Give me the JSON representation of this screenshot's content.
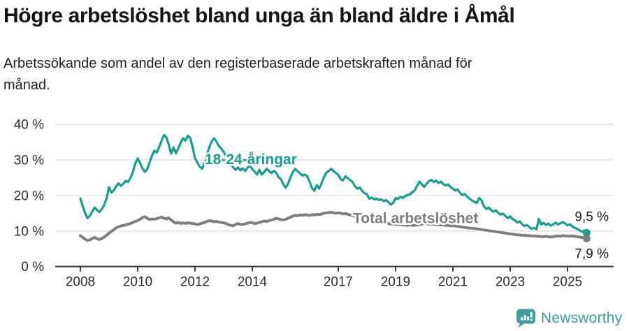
{
  "header": {
    "title": "Högre arbetslöshet bland unga än bland äldre i Åmål",
    "subtitle": "Arbetssökande som andel av den registerbaserade arbetskraften månad för månad."
  },
  "chart_data": {
    "type": "line",
    "unit": "%",
    "frequency": "monthly",
    "start": "2008-01",
    "end": "2025-09",
    "grid": "horizontal",
    "ylim": [
      0,
      40
    ],
    "yticks": [
      0,
      10,
      20,
      30,
      40
    ],
    "ytick_suffix": " %",
    "xticks": [
      2008,
      2010,
      2012,
      2014,
      2017,
      2019,
      2021,
      2023,
      2025
    ],
    "colors": {
      "grid": "#DEDEDE",
      "axis": "#3A3A3A",
      "tick_text": "#2D2D2D",
      "value_text": "#1A1A1A"
    },
    "series": [
      {
        "key": "youth",
        "name": "18-24-åringar",
        "color": "#13A08D",
        "width": 3.2,
        "label_pos": {
          "year": 2013.95,
          "value": 30.2
        },
        "end_label": "9,5 %",
        "end_value": 9.5,
        "values": [
          19.2,
          17.0,
          15.0,
          13.6,
          14.3,
          15.5,
          16.6,
          15.9,
          15.3,
          16.2,
          17.4,
          19.3,
          22.3,
          20.8,
          21.4,
          22.6,
          23.4,
          22.7,
          23.3,
          24.1,
          23.8,
          25.0,
          26.6,
          29.0,
          30.4,
          29.2,
          27.6,
          26.6,
          27.4,
          29.3,
          31.2,
          32.6,
          32.1,
          33.6,
          35.4,
          37.0,
          36.4,
          34.3,
          31.8,
          33.5,
          31.9,
          33.2,
          34.9,
          36.1,
          35.4,
          36.8,
          36.2,
          33.6,
          30.5,
          29.3,
          28.1,
          27.5,
          29.2,
          31.6,
          33.6,
          35.2,
          36.1,
          35.1,
          33.9,
          33.2,
          32.3,
          31.0,
          29.8,
          28.8,
          27.9,
          27.2,
          27.9,
          27.1,
          27.6,
          26.9,
          27.8,
          28.4,
          27.4,
          26.7,
          25.9,
          27.2,
          25.9,
          26.6,
          27.5,
          26.9,
          26.3,
          26.9,
          26.4,
          25.1,
          24.6,
          23.1,
          22.2,
          23.3,
          25.1,
          26.6,
          27.5,
          26.8,
          26.2,
          25.6,
          25.9,
          25.4,
          23.9,
          22.1,
          21.3,
          22.9,
          21.9,
          23.4,
          25.1,
          26.4,
          26.9,
          27.5,
          26.9,
          26.3,
          25.8,
          24.6,
          24.2,
          25.4,
          24.8,
          24.3,
          23.8,
          22.6,
          21.9,
          22.2,
          21.3,
          20.6,
          20.4,
          19.1,
          19.4,
          18.9,
          19.1,
          18.7,
          18.9,
          18.4,
          18.7,
          18.1,
          17.4,
          17.9,
          19.3,
          19.0,
          19.6,
          19.3,
          19.8,
          20.1,
          20.3,
          20.9,
          21.4,
          22.7,
          23.9,
          23.1,
          22.4,
          23.3,
          24.0,
          24.4,
          23.8,
          24.2,
          23.5,
          23.9,
          23.2,
          22.8,
          23.1,
          22.4,
          21.9,
          21.4,
          21.7,
          20.7,
          20.1,
          20.4,
          19.6,
          19.1,
          18.6,
          18.2,
          17.9,
          19.3,
          18.6,
          17.0,
          16.2,
          16.6,
          15.9,
          15.4,
          15.8,
          15.1,
          14.6,
          14.9,
          14.2,
          13.6,
          14.1,
          13.4,
          13.0,
          12.4,
          12.7,
          11.9,
          11.4,
          11.7,
          11.1,
          10.6,
          10.9,
          10.5,
          13.4,
          11.8,
          12.3,
          11.7,
          12.1,
          11.5,
          11.9,
          12.4,
          11.8,
          12.2,
          12.5,
          12.1,
          11.6,
          11.9,
          11.3,
          10.9,
          10.6,
          10.2,
          9.8,
          10.1,
          9.5
        ]
      },
      {
        "key": "total",
        "name": "Total arbetslöshet",
        "color": "#7E7E7E",
        "width": 4,
        "label_pos": {
          "year": 2019.7,
          "value": 13.6
        },
        "end_label": "7,9 %",
        "end_value": 7.9,
        "values": [
          8.7,
          8.2,
          7.7,
          7.3,
          7.5,
          7.9,
          8.2,
          7.8,
          7.6,
          7.9,
          8.3,
          8.8,
          9.4,
          9.9,
          10.4,
          10.9,
          11.2,
          11.4,
          11.6,
          11.7,
          11.9,
          12.1,
          12.4,
          12.7,
          12.9,
          13.3,
          13.8,
          14.0,
          13.6,
          13.2,
          13.4,
          13.3,
          13.5,
          13.7,
          13.9,
          13.6,
          13.4,
          13.7,
          13.1,
          12.6,
          12.2,
          12.4,
          12.1,
          12.3,
          12.1,
          12.3,
          12.2,
          12.1,
          12.0,
          11.8,
          12.0,
          12.2,
          12.4,
          12.7,
          12.9,
          12.8,
          12.6,
          12.7,
          12.5,
          12.4,
          12.3,
          12.1,
          11.8,
          11.6,
          11.5,
          11.8,
          12.1,
          11.9,
          11.8,
          12.0,
          12.2,
          12.4,
          12.3,
          12.1,
          12.2,
          12.4,
          12.6,
          12.8,
          12.7,
          12.9,
          13.1,
          13.3,
          13.6,
          13.4,
          13.2,
          13.1,
          13.3,
          13.6,
          13.9,
          14.2,
          14.4,
          14.3,
          14.5,
          14.4,
          14.6,
          14.5,
          14.4,
          14.6,
          14.5,
          14.7,
          14.6,
          14.8,
          15.0,
          15.1,
          15.2,
          15.3,
          15.1,
          15.0,
          15.1,
          15.0,
          14.8,
          14.9,
          14.7,
          14.5,
          14.3,
          14.1,
          13.9,
          13.7,
          13.5,
          13.4,
          13.3,
          13.1,
          13.0,
          12.8,
          12.7,
          12.5,
          12.4,
          12.3,
          12.2,
          12.1,
          12.0,
          12.0,
          11.9,
          11.8,
          11.8,
          11.7,
          11.7,
          11.6,
          11.7,
          11.6,
          11.6,
          11.7,
          11.8,
          11.9,
          12.1,
          12.0,
          12.0,
          11.9,
          11.9,
          11.8,
          11.8,
          11.7,
          11.7,
          11.6,
          11.6,
          11.5,
          11.5,
          11.4,
          11.3,
          11.2,
          11.1,
          11.0,
          10.9,
          10.8,
          10.8,
          10.7,
          10.6,
          10.5,
          10.4,
          10.3,
          10.2,
          10.1,
          10.0,
          9.9,
          9.8,
          9.7,
          9.6,
          9.5,
          9.4,
          9.3,
          9.2,
          9.1,
          9.0,
          8.9,
          8.9,
          8.8,
          8.8,
          8.7,
          8.7,
          8.6,
          8.6,
          8.5,
          8.5,
          8.4,
          8.4,
          8.5,
          8.4,
          8.3,
          8.4,
          8.5,
          8.6,
          8.5,
          8.7,
          8.6,
          8.6,
          8.5,
          8.6,
          8.5,
          8.4,
          8.3,
          8.2,
          8.1,
          7.9
        ]
      }
    ]
  },
  "footer": {
    "brand": "Newsworthy",
    "brand_color": "#3E9F9A",
    "logo_icon": "newsworthy-chart-bubble-icon"
  }
}
